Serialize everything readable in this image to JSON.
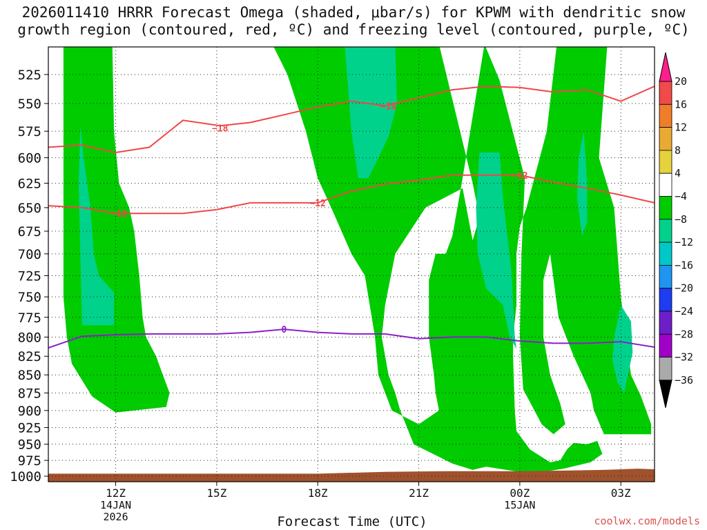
{
  "title_line1": "2026011410 HRRR Forecast Omega (shaded, μbar/s) for KPWM with dendritic snow",
  "title_line2": "growth region (contoured, red, ºC) and freezing level (contoured, purple, ºC)",
  "credit": "coolwx.com/models",
  "chart_data": {
    "type": "heatmap",
    "xlabel": "Forecast Time (UTC)",
    "ylabel": "",
    "x_ticks": [
      {
        "hour": 12,
        "label": "12Z",
        "sub": [
          "14JAN",
          "2026"
        ]
      },
      {
        "hour": 15,
        "label": "15Z",
        "sub": []
      },
      {
        "hour": 18,
        "label": "18Z",
        "sub": []
      },
      {
        "hour": 21,
        "label": "21Z",
        "sub": []
      },
      {
        "hour": 24,
        "label": "00Z",
        "sub": [
          "15JAN"
        ]
      },
      {
        "hour": 27,
        "label": "03Z",
        "sub": []
      }
    ],
    "xlim": [
      10,
      28
    ],
    "y_ticks": [
      525,
      550,
      575,
      600,
      625,
      650,
      675,
      700,
      725,
      750,
      775,
      800,
      825,
      850,
      875,
      900,
      925,
      950,
      975,
      1000
    ],
    "ylim_hPa": [
      500,
      1000
    ],
    "grid": "dotted",
    "colorbar": {
      "labels": [
        "20",
        "16",
        "12",
        "8",
        "4",
        "−4",
        "−8",
        "−12",
        "−16",
        "−20",
        "−24",
        "−28",
        "−32",
        "−36"
      ],
      "colors": [
        "#ff1e8c",
        "#f04a4a",
        "#f07d2a",
        "#e8aa32",
        "#e6d23c",
        "#ffffff",
        "#00cc00",
        "#00d28c",
        "#00c8c8",
        "#1e96f0",
        "#1e3cf0",
        "#6e1ec8",
        "#a000c8",
        "#aaaaaa",
        "#000000"
      ]
    },
    "shaded_regions": [
      {
        "omega": -4,
        "color": "#00cc00",
        "polygon": [
          [
            10.45,
            500
          ],
          [
            11.9,
            500
          ],
          [
            11.95,
            575
          ],
          [
            12.1,
            625
          ],
          [
            12.4,
            650
          ],
          [
            12.55,
            675
          ],
          [
            12.7,
            725
          ],
          [
            12.8,
            775
          ],
          [
            12.9,
            800
          ],
          [
            13.2,
            825
          ],
          [
            13.4,
            850
          ],
          [
            13.6,
            875
          ],
          [
            13.5,
            895
          ],
          [
            12.0,
            903
          ],
          [
            11.3,
            880
          ],
          [
            10.7,
            835
          ],
          [
            10.55,
            800
          ],
          [
            10.45,
            750
          ],
          [
            10.45,
            600
          ]
        ]
      },
      {
        "omega": -8,
        "color": "#00d28c",
        "polygon": [
          [
            10.95,
            570
          ],
          [
            11.05,
            600
          ],
          [
            11.25,
            650
          ],
          [
            11.35,
            700
          ],
          [
            11.5,
            725
          ],
          [
            11.95,
            745
          ],
          [
            11.95,
            785
          ],
          [
            11.0,
            785
          ],
          [
            10.95,
            700
          ],
          [
            10.9,
            625
          ]
        ]
      },
      {
        "omega": -4,
        "color": "#00cc00",
        "polygon": [
          [
            16.65,
            500
          ],
          [
            18.0,
            500
          ],
          [
            19.3,
            500
          ],
          [
            21.6,
            500
          ],
          [
            22.6,
            625
          ],
          [
            22.8,
            660
          ],
          [
            22.6,
            685
          ],
          [
            22.3,
            630
          ],
          [
            21.2,
            650
          ],
          [
            20.3,
            700
          ],
          [
            20.0,
            760
          ],
          [
            19.9,
            800
          ],
          [
            20.1,
            850
          ],
          [
            20.3,
            875
          ],
          [
            20.45,
            900
          ],
          [
            20.85,
            950
          ],
          [
            22.0,
            980
          ],
          [
            22.6,
            990
          ],
          [
            23.0,
            985
          ],
          [
            23.6,
            990
          ],
          [
            24.0,
            993
          ],
          [
            24.7,
            993
          ],
          [
            25.3,
            988
          ],
          [
            26.1,
            978
          ],
          [
            26.45,
            965
          ],
          [
            26.3,
            945
          ],
          [
            26.0,
            950
          ],
          [
            25.6,
            948
          ],
          [
            25.4,
            958
          ],
          [
            25.2,
            975
          ],
          [
            24.9,
            978
          ],
          [
            24.3,
            958
          ],
          [
            23.9,
            930
          ],
          [
            23.85,
            900
          ],
          [
            23.8,
            825
          ],
          [
            23.8,
            800
          ],
          [
            23.9,
            760
          ],
          [
            23.9,
            700
          ],
          [
            24.0,
            670
          ],
          [
            24.2,
            650
          ],
          [
            24.8,
            575
          ],
          [
            25.1,
            500
          ],
          [
            26.6,
            500
          ],
          [
            26.35,
            600
          ],
          [
            26.8,
            650
          ],
          [
            27.0,
            750
          ],
          [
            27.3,
            850
          ],
          [
            27.6,
            880
          ],
          [
            27.9,
            920
          ],
          [
            27.9,
            935
          ],
          [
            26.5,
            935
          ],
          [
            26.2,
            900
          ],
          [
            26.1,
            875
          ],
          [
            25.6,
            825
          ],
          [
            25.15,
            775
          ],
          [
            24.9,
            700
          ],
          [
            24.7,
            730
          ],
          [
            24.7,
            800
          ],
          [
            24.9,
            850
          ],
          [
            25.2,
            890
          ],
          [
            25.35,
            920
          ],
          [
            25.0,
            935
          ],
          [
            24.65,
            920
          ],
          [
            24.1,
            870
          ],
          [
            24.0,
            800
          ],
          [
            24.05,
            700
          ],
          [
            24.15,
            620
          ],
          [
            23.4,
            530
          ],
          [
            22.95,
            500
          ],
          [
            22.3,
            620
          ],
          [
            22.0,
            680
          ],
          [
            21.8,
            700
          ],
          [
            21.5,
            700
          ],
          [
            21.3,
            730
          ],
          [
            21.3,
            800
          ],
          [
            21.45,
            850
          ],
          [
            21.5,
            875
          ],
          [
            21.6,
            900
          ],
          [
            21.0,
            920
          ],
          [
            20.2,
            900
          ],
          [
            19.8,
            850
          ],
          [
            19.7,
            800
          ],
          [
            19.4,
            725
          ],
          [
            19.0,
            700
          ],
          [
            18.4,
            650
          ],
          [
            18.0,
            620
          ],
          [
            17.65,
            575
          ],
          [
            17.1,
            525
          ]
        ]
      },
      {
        "omega": -8,
        "color": "#00d28c",
        "polygon": [
          [
            18.8,
            500
          ],
          [
            20.3,
            500
          ],
          [
            20.35,
            550
          ],
          [
            20.1,
            580
          ],
          [
            19.8,
            600
          ],
          [
            19.5,
            620
          ],
          [
            19.2,
            620
          ],
          [
            19.0,
            575
          ]
        ]
      },
      {
        "omega": -8,
        "color": "#00d28c",
        "polygon": [
          [
            22.8,
            595
          ],
          [
            23.4,
            595
          ],
          [
            23.5,
            640
          ],
          [
            23.75,
            720
          ],
          [
            23.85,
            800
          ],
          [
            23.9,
            815
          ],
          [
            23.7,
            800
          ],
          [
            23.5,
            760
          ],
          [
            23.0,
            740
          ],
          [
            22.75,
            700
          ],
          [
            22.7,
            650
          ]
        ]
      },
      {
        "omega": -8,
        "color": "#00d28c",
        "polygon": [
          [
            25.9,
            575
          ],
          [
            26.0,
            625
          ],
          [
            26.0,
            665
          ],
          [
            25.85,
            680
          ],
          [
            25.7,
            640
          ],
          [
            25.75,
            600
          ]
        ]
      },
      {
        "omega": -8,
        "color": "#00d28c",
        "polygon": [
          [
            27.0,
            760
          ],
          [
            27.3,
            780
          ],
          [
            27.35,
            820
          ],
          [
            27.1,
            875
          ],
          [
            26.9,
            860
          ],
          [
            26.75,
            830
          ],
          [
            26.8,
            800
          ]
        ]
      }
    ],
    "contours": [
      {
        "value": -18,
        "color": "#f04646",
        "label": "−18",
        "label_at": [
          [
            15.1,
            572
          ],
          [
            20.1,
            552
          ]
        ],
        "points": [
          [
            10,
            590
          ],
          [
            11.0,
            588
          ],
          [
            12.0,
            595
          ],
          [
            13.0,
            590
          ],
          [
            14.0,
            565
          ],
          [
            15.1,
            570
          ],
          [
            16.0,
            567
          ],
          [
            17.0,
            560
          ],
          [
            18.0,
            553
          ],
          [
            19.0,
            548
          ],
          [
            20.0,
            552
          ],
          [
            21.0,
            545
          ],
          [
            22.0,
            538
          ],
          [
            23.0,
            535
          ],
          [
            24.0,
            536
          ],
          [
            25.0,
            540
          ],
          [
            26.0,
            538
          ],
          [
            27.0,
            548
          ],
          [
            28,
            535
          ]
        ]
      },
      {
        "value": -12,
        "color": "#f04646",
        "label": "−12",
        "label_at": [
          [
            12.1,
            656
          ],
          [
            18.0,
            645
          ],
          [
            24.0,
            617
          ]
        ],
        "points": [
          [
            10,
            648
          ],
          [
            11.0,
            650
          ],
          [
            12.0,
            656
          ],
          [
            13.0,
            656
          ],
          [
            14.0,
            656
          ],
          [
            15.0,
            652
          ],
          [
            16.0,
            645
          ],
          [
            17.0,
            645
          ],
          [
            18.0,
            645
          ],
          [
            19.0,
            633
          ],
          [
            20.0,
            626
          ],
          [
            21.0,
            622
          ],
          [
            22.0,
            617
          ],
          [
            23.0,
            617
          ],
          [
            24.0,
            617
          ],
          [
            25.0,
            624
          ],
          [
            26.0,
            630
          ],
          [
            27.0,
            637
          ],
          [
            28,
            645
          ]
        ]
      },
      {
        "value": 0,
        "color": "#8a1ec8",
        "label": "0",
        "label_at": [
          [
            17.0,
            790
          ]
        ],
        "points": [
          [
            10,
            814
          ],
          [
            11.0,
            799
          ],
          [
            12.0,
            797
          ],
          [
            13.0,
            796
          ],
          [
            14.0,
            796
          ],
          [
            15.0,
            796
          ],
          [
            16.0,
            794
          ],
          [
            17.0,
            790
          ],
          [
            18.0,
            794
          ],
          [
            19.0,
            796
          ],
          [
            20.0,
            796
          ],
          [
            21.0,
            802
          ],
          [
            22.0,
            800
          ],
          [
            23.0,
            800
          ],
          [
            24.0,
            805
          ],
          [
            25.0,
            808
          ],
          [
            26.0,
            808
          ],
          [
            27.0,
            806
          ],
          [
            28,
            813
          ]
        ]
      }
    ],
    "terrain": {
      "color": "#a0522d",
      "points": [
        [
          10,
          996
        ],
        [
          12,
          996
        ],
        [
          14,
          996
        ],
        [
          16,
          996
        ],
        [
          18,
          996
        ],
        [
          20,
          993
        ],
        [
          22,
          992
        ],
        [
          24,
          992
        ],
        [
          25.5,
          991
        ],
        [
          26.5,
          990
        ],
        [
          27.5,
          988
        ],
        [
          28,
          989
        ]
      ]
    }
  }
}
